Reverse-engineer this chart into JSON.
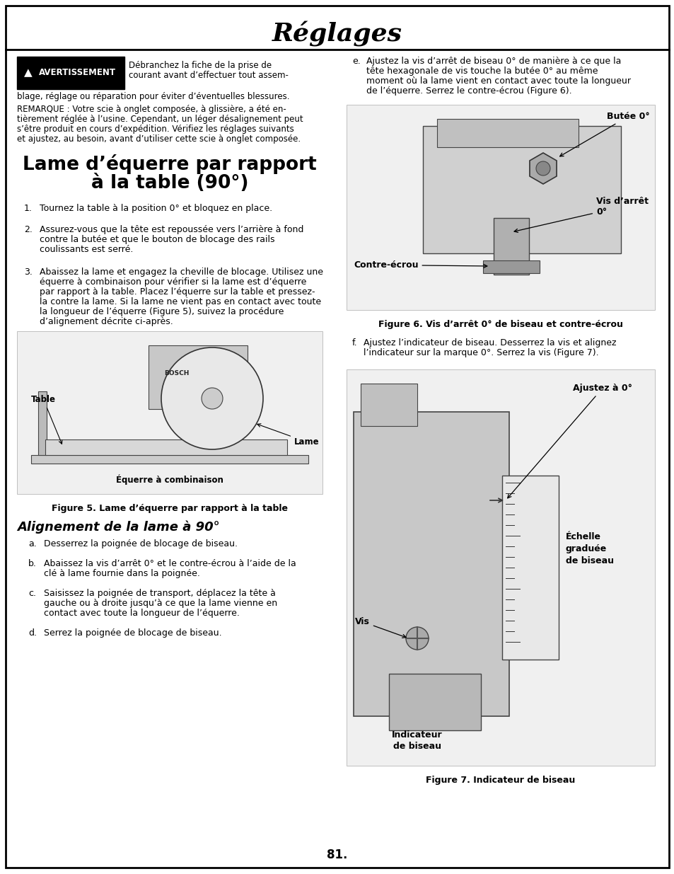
{
  "title": "Réglages",
  "page_number": "81.",
  "bg_color": "#ffffff",
  "text_color": "#000000",
  "warning_label": "AVERTISSEMENT",
  "warning_line1": "Débranchez la fiche de la prise de",
  "warning_line2": "courant avant d’effectuer tout assem-",
  "warning_line3": "blage, réglage ou réparation pour éviter d’éventuelles blessures.",
  "remarque_line1": "REMARQUE : Votre scie à onglet composée, à glissière, a été en-",
  "remarque_line2": "tièrement réglée à l’usine. Cependant, un léger désalignement peut",
  "remarque_line3": "s’être produit en cours d’expédition. Vérifiez les réglages suivants",
  "remarque_line4": "et ajustez, au besoin, avant d’utiliser cette scie à onglet composée.",
  "section_title_line1": "Lame d’équerre par rapport",
  "section_title_line2": "à la table (90°)",
  "step1": "Tournez la table à la position 0° et bloquez en place.",
  "step2_line1": "Assurez-vous que la tête est repoussée vers l’arrière à fond",
  "step2_line2": "contre la butée et que le bouton de blocage des rails",
  "step2_line3": "coulissants est serré.",
  "step3_line1": "Abaissez la lame et engagez la cheville de blocage. Utilisez une",
  "step3_line2": "équerre à combinaison pour vérifier si la lame est d’équerre",
  "step3_line3": "par rapport à la table. Placez l’équerre sur la table et pressez-",
  "step3_line4": "la contre la lame. Si la lame ne vient pas en contact avec toute",
  "step3_line5": "la longueur de l’équerre (Figure 5), suivez la procédure",
  "step3_line6": "d’alignement décrite ci-après.",
  "fig5_label_table": "Table",
  "fig5_label_lame": "Lame",
  "fig5_label_equerre": "Équerre à combinaison",
  "fig5_label_bosch": "BOSCH",
  "fig5_caption": "Figure 5. Lame d’équerre par rapport à la table",
  "subsection_title": "Alignement de la lame à 90°",
  "stepa": "Desserrez la poignée de blocage de biseau.",
  "stepb_line1": "Abaissez la vis d’arrêt 0° et le contre-écrou à l’aide de la",
  "stepb_line2": "clé à lame fournie dans la poignée.",
  "stepc_line1": "Saisissez la poignée de transport, déplacez la tête à",
  "stepc_line2": "gauche ou à droite jusqu’à ce que la lame vienne en",
  "stepc_line3": "contact avec toute la longueur de l’équerre.",
  "stepd": "Serrez la poignée de blocage de biseau.",
  "stepe_line1": "Ajustez la vis d’arrêt de biseau 0° de manière à ce que la",
  "stepe_line2": "tête hexagonale de vis touche la butée 0° au même",
  "stepe_line3": "moment où la lame vient en contact avec toute la longueur",
  "stepe_line4": "de l’équerre. Serrez le contre-écrou (Figure 6).",
  "fig6_label_butee": "Butée 0°",
  "fig6_label_vis": "Vis d’arrêt\n0°",
  "fig6_label_contre": "Contre-écrou",
  "fig6_caption": "Figure 6. Vis d’arrêt 0° de biseau et contre-écrou",
  "stepf_line1": "Ajustez l’indicateur de biseau. Desserrez la vis et alignez",
  "stepf_line2": "l’indicateur sur la marque 0°. Serrez la vis (Figure 7).",
  "fig7_label_ajustez": "Ajustez à 0°",
  "fig7_label_echelle": "Échelle\ngraduée\nde biseau",
  "fig7_label_vis": "Vis",
  "fig7_label_indicateur": "Indicateur\nde biseau",
  "fig7_caption": "Figure 7. Indicateur de biseau"
}
